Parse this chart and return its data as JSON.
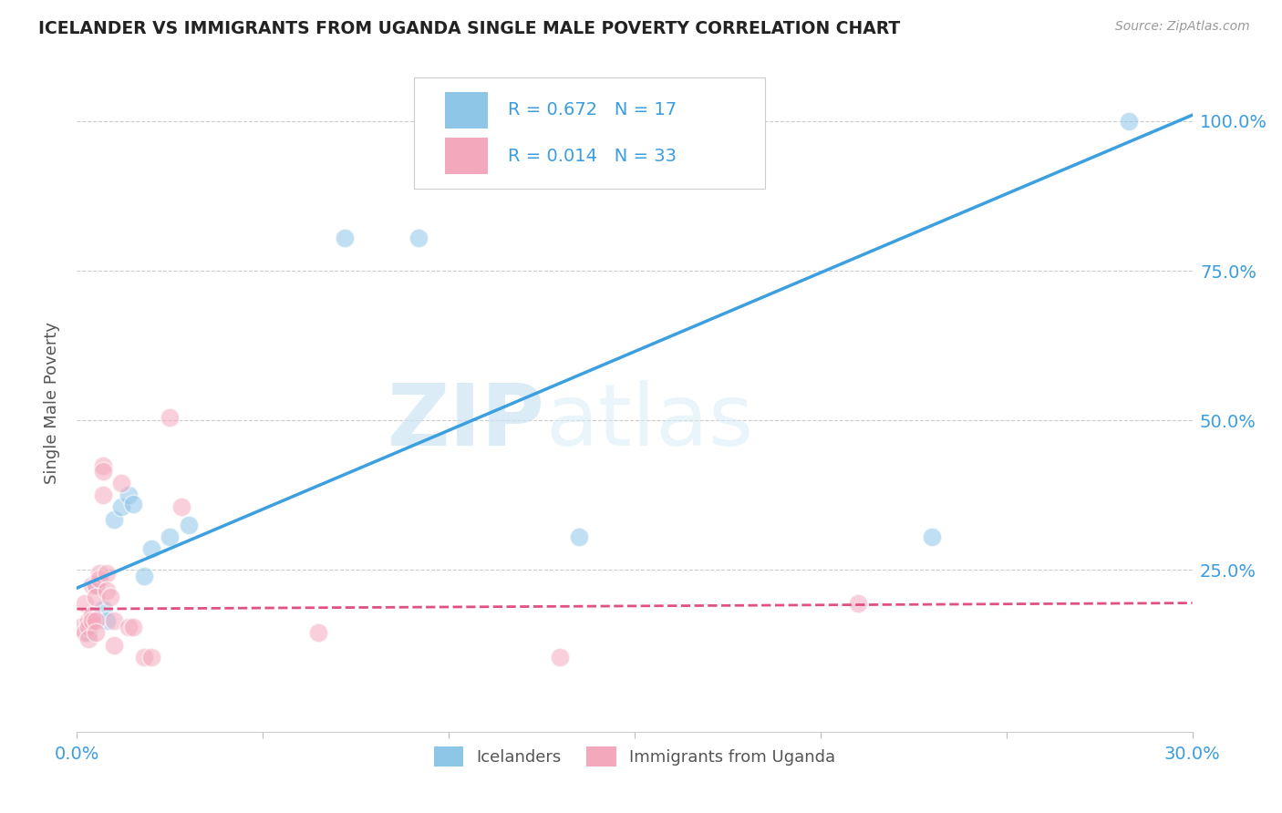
{
  "title": "ICELANDER VS IMMIGRANTS FROM UGANDA SINGLE MALE POVERTY CORRELATION CHART",
  "source": "Source: ZipAtlas.com",
  "ylabel_label": "Single Male Poverty",
  "xlim": [
    0.0,
    0.3
  ],
  "ylim": [
    -0.02,
    1.08
  ],
  "blue_R": "R = 0.672",
  "blue_N": "N = 17",
  "pink_R": "R = 0.014",
  "pink_N": "N = 33",
  "legend_label_blue": "Icelanders",
  "legend_label_pink": "Immigrants from Uganda",
  "blue_color": "#8ec6e8",
  "pink_color": "#f4a8bc",
  "blue_line_color": "#3ca0e0",
  "pink_line_color": "#e05080",
  "watermark_zip": "ZIP",
  "watermark_atlas": "atlas",
  "blue_line_x": [
    0.0,
    0.3
  ],
  "blue_line_y": [
    0.22,
    1.01
  ],
  "pink_line_x": [
    0.0,
    0.3
  ],
  "pink_line_y": [
    0.185,
    0.195
  ],
  "blue_scatter_x": [
    0.003,
    0.005,
    0.007,
    0.008,
    0.01,
    0.012,
    0.014,
    0.015,
    0.018,
    0.02,
    0.025,
    0.03,
    0.072,
    0.092,
    0.135,
    0.23,
    0.283
  ],
  "blue_scatter_y": [
    0.145,
    0.225,
    0.185,
    0.165,
    0.335,
    0.355,
    0.375,
    0.36,
    0.24,
    0.285,
    0.305,
    0.325,
    0.805,
    0.805,
    0.305,
    0.305,
    1.0
  ],
  "pink_scatter_x": [
    0.001,
    0.002,
    0.002,
    0.003,
    0.003,
    0.003,
    0.004,
    0.004,
    0.004,
    0.005,
    0.005,
    0.005,
    0.005,
    0.006,
    0.006,
    0.007,
    0.007,
    0.007,
    0.008,
    0.008,
    0.009,
    0.01,
    0.01,
    0.012,
    0.014,
    0.015,
    0.018,
    0.02,
    0.025,
    0.028,
    0.065,
    0.13,
    0.21
  ],
  "pink_scatter_y": [
    0.155,
    0.195,
    0.145,
    0.165,
    0.155,
    0.135,
    0.175,
    0.165,
    0.225,
    0.225,
    0.205,
    0.165,
    0.145,
    0.245,
    0.235,
    0.375,
    0.425,
    0.415,
    0.245,
    0.215,
    0.205,
    0.165,
    0.125,
    0.395,
    0.155,
    0.155,
    0.105,
    0.105,
    0.505,
    0.355,
    0.145,
    0.105,
    0.195
  ],
  "x_tick_positions": [
    0.0,
    0.05,
    0.1,
    0.15,
    0.2,
    0.25,
    0.3
  ],
  "x_tick_labels": [
    "0.0%",
    "",
    "",
    "",
    "",
    "",
    "30.0%"
  ],
  "y_tick_positions": [
    0.0,
    0.25,
    0.5,
    0.75,
    1.0
  ],
  "y_tick_labels_right": [
    "",
    "25.0%",
    "50.0%",
    "75.0%",
    "100.0%"
  ]
}
